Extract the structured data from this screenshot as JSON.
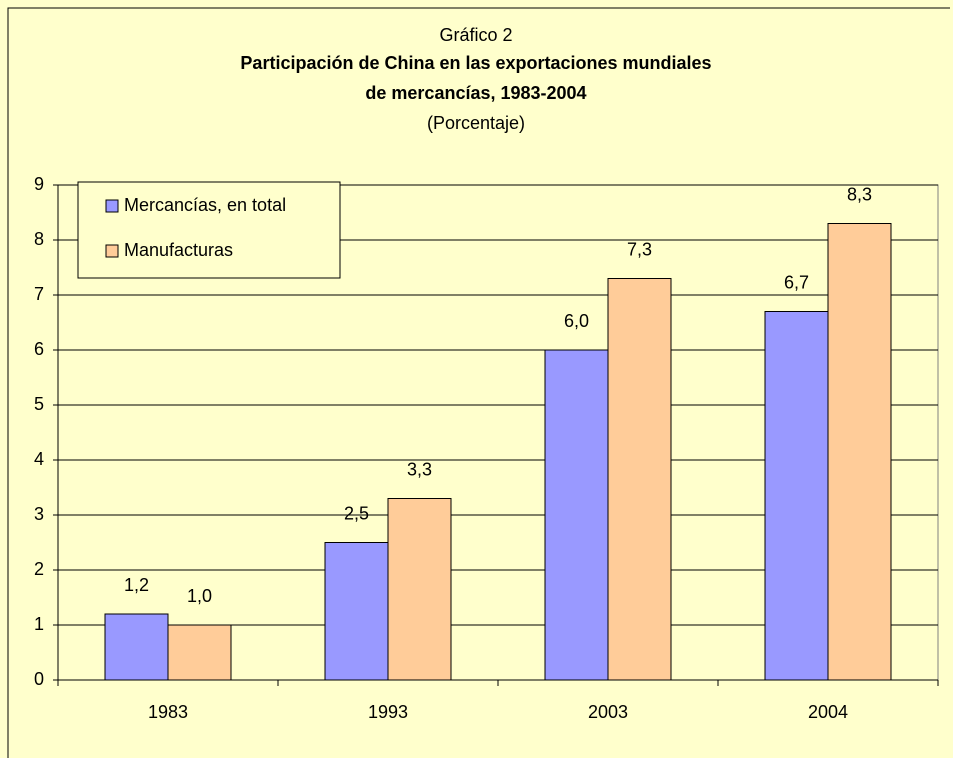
{
  "chart_data": {
    "type": "bar",
    "heading": "Gráfico 2",
    "title": [
      "Participación de China en las exportaciones mundiales",
      "de mercancías, 1983-2004"
    ],
    "subtitle": "(Porcentaje)",
    "categories": [
      "1983",
      "1993",
      "2003",
      "2004"
    ],
    "series": [
      {
        "name": "Mercancías, en total",
        "color": "#9999ff",
        "values": [
          1.2,
          2.5,
          6.0,
          6.7
        ],
        "value_labels": [
          "1,2",
          "2,5",
          "6,0",
          "6,7"
        ]
      },
      {
        "name": "Manufacturas",
        "color": "#ffcc99",
        "values": [
          1.0,
          3.3,
          7.3,
          8.3
        ],
        "value_labels": [
          "1,0",
          "3,3",
          "7,3",
          "8,3"
        ]
      }
    ],
    "ylim": [
      0,
      9
    ],
    "yticks": [
      0,
      1,
      2,
      3,
      4,
      5,
      6,
      7,
      8,
      9
    ],
    "grid": true,
    "legend": "upper left"
  }
}
